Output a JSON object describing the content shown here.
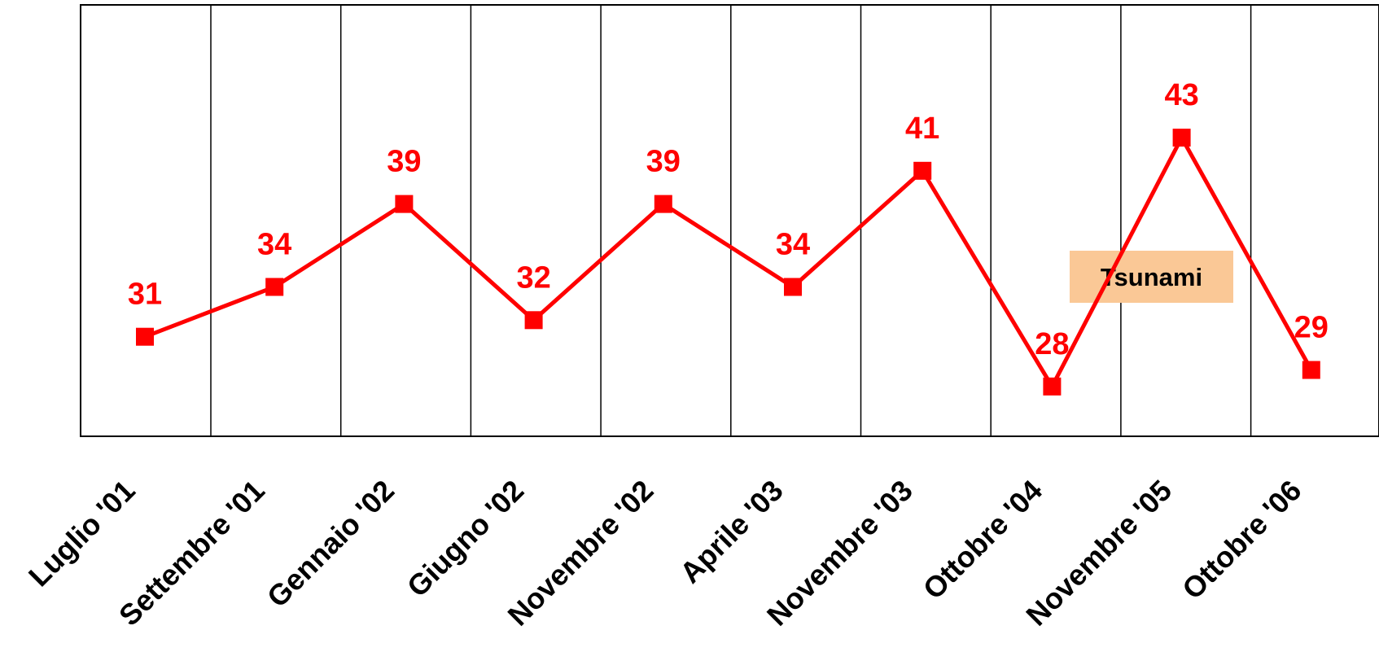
{
  "chart_data": {
    "type": "line",
    "categories": [
      "Luglio '01",
      "Settembre '01",
      "Gennaio '02",
      "Giugno '02",
      "Novembre '02",
      "Aprile '03",
      "Novembre '03",
      "Ottobre '04",
      "Novembre '05",
      "Ottobre '06"
    ],
    "series": [
      {
        "values": [
          31,
          34,
          39,
          32,
          39,
          34,
          41,
          28,
          43,
          29
        ],
        "color": "#ff0000",
        "marker": "square"
      }
    ],
    "data_labels": [
      "31",
      "34",
      "39",
      "32",
      "39",
      "34",
      "41",
      "28",
      "43",
      "29"
    ],
    "ylim": [
      25,
      51
    ],
    "grid": "vertical dividers between categories",
    "annotations": [
      {
        "text": "Tsunami",
        "background": "#fac896"
      }
    ],
    "title": "",
    "xlabel": "",
    "ylabel": ""
  }
}
